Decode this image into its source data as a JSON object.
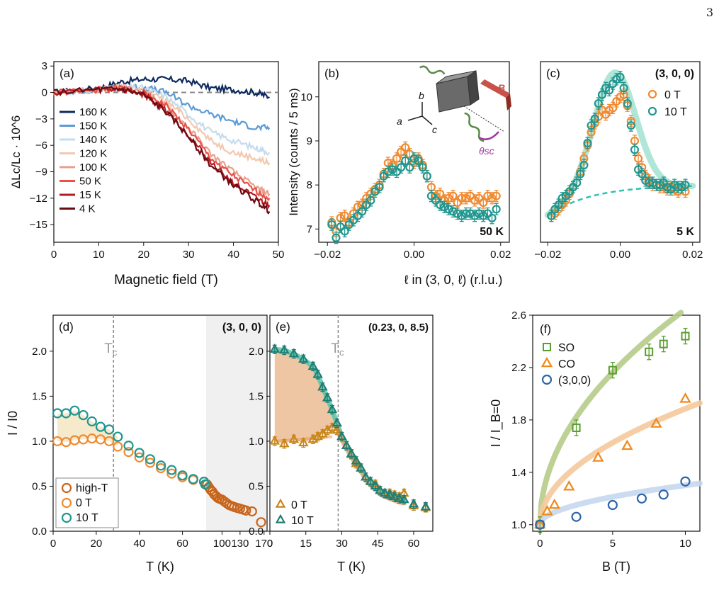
{
  "page_number": "3",
  "chart_data": [
    {
      "panel": "(a)",
      "type": "line",
      "xlabel": "Magnetic field (T)",
      "ylabel": "ΔLc/Lc · 10^6",
      "xlim": [
        0,
        50
      ],
      "ylim": [
        -17,
        3.5
      ],
      "xticks": [
        0,
        10,
        20,
        30,
        40,
        50
      ],
      "yticks": [
        3,
        0,
        -3,
        -6,
        -9,
        -12,
        -15
      ],
      "legend_position": "left",
      "series": [
        {
          "name": "160 K",
          "color": "#0d2a5e",
          "x": [
            0,
            10,
            15,
            20,
            25,
            30,
            35,
            40,
            45,
            48
          ],
          "y": [
            0,
            0.5,
            1.2,
            1.5,
            1.5,
            1.3,
            0.5,
            0.3,
            0,
            -0.5
          ]
        },
        {
          "name": "150 K",
          "color": "#5b9bd5",
          "x": [
            0,
            10,
            15,
            20,
            25,
            30,
            35,
            40,
            45,
            48
          ],
          "y": [
            0,
            0.3,
            0.6,
            0.6,
            0,
            -1.5,
            -2.5,
            -3.3,
            -4,
            -4
          ]
        },
        {
          "name": "140 K",
          "color": "#c6dcee",
          "x": [
            0,
            10,
            15,
            20,
            25,
            30,
            35,
            40,
            45,
            48
          ],
          "y": [
            0,
            0.3,
            0.6,
            0.5,
            -0.5,
            -2.5,
            -4.5,
            -5.5,
            -6.3,
            -6.8
          ]
        },
        {
          "name": "120 K",
          "color": "#f2c8b0",
          "x": [
            0,
            10,
            15,
            20,
            25,
            30,
            35,
            40,
            45,
            48
          ],
          "y": [
            0,
            0.3,
            0.6,
            0.3,
            -1,
            -3,
            -5.5,
            -6.8,
            -7.5,
            -8
          ]
        },
        {
          "name": "100 K",
          "color": "#e8a08a",
          "x": [
            0,
            10,
            15,
            20,
            25,
            30,
            35,
            40,
            45,
            48
          ],
          "y": [
            0,
            0.3,
            0.5,
            0,
            -1.5,
            -4,
            -7,
            -9,
            -10.8,
            -11.5
          ]
        },
        {
          "name": "50 K",
          "color": "#e8524a",
          "x": [
            0,
            10,
            15,
            20,
            25,
            30,
            35,
            40,
            45,
            48
          ],
          "y": [
            0,
            0.3,
            0.5,
            0,
            -1.5,
            -4.2,
            -7.5,
            -9.5,
            -11.2,
            -12
          ]
        },
        {
          "name": "15 K",
          "color": "#b01c22",
          "x": [
            0,
            10,
            15,
            20,
            25,
            30,
            35,
            40,
            45,
            48
          ],
          "y": [
            0,
            0.3,
            0.4,
            -0.2,
            -2,
            -4.8,
            -8,
            -10.3,
            -12,
            -12.8
          ]
        },
        {
          "name": "4 K",
          "color": "#6b0a10",
          "x": [
            0,
            10,
            15,
            20,
            25,
            30,
            35,
            40,
            45,
            48
          ],
          "y": [
            0,
            0.3,
            0.4,
            -0.3,
            -2.2,
            -5,
            -8.3,
            -10.5,
            -12.3,
            -13.5
          ]
        }
      ]
    },
    {
      "panel": "(b)",
      "type": "scatter",
      "xlabel": "",
      "ylabel": "Intensity (counts / 5 ms)",
      "annotation": "50 K",
      "xlim": [
        -0.022,
        0.022
      ],
      "ylim": [
        6.7,
        10.8
      ],
      "xticks": [
        -0.02,
        0.0,
        0.02
      ],
      "yticks": [
        7,
        8,
        9,
        10
      ],
      "inset_labels": {
        "b": "b",
        "a": "a",
        "c": "c",
        "B": "B",
        "theta": "θsc"
      },
      "series": [
        {
          "name": "0 T",
          "color": "#f08a30",
          "x": [
            -0.019,
            -0.018,
            -0.017,
            -0.016,
            -0.015,
            -0.014,
            -0.013,
            -0.012,
            -0.011,
            -0.01,
            -0.009,
            -0.008,
            -0.007,
            -0.006,
            -0.005,
            -0.004,
            -0.003,
            -0.002,
            -0.001,
            0.0,
            0.001,
            0.002,
            0.003,
            0.004,
            0.005,
            0.006,
            0.007,
            0.008,
            0.009,
            0.01,
            0.011,
            0.012,
            0.013,
            0.014,
            0.015,
            0.016,
            0.017,
            0.018,
            0.019
          ],
          "y": [
            7.15,
            6.95,
            7.25,
            7.3,
            7.15,
            7.35,
            7.5,
            7.55,
            7.7,
            7.8,
            7.9,
            8.0,
            8.25,
            8.5,
            8.45,
            8.6,
            8.75,
            8.85,
            8.7,
            8.5,
            8.6,
            8.45,
            8.2,
            7.95,
            7.75,
            7.8,
            7.65,
            7.7,
            7.75,
            7.6,
            7.7,
            7.7,
            7.75,
            7.65,
            7.7,
            7.6,
            7.75,
            7.7,
            7.75
          ]
        },
        {
          "name": "10 T",
          "color": "#21968f",
          "x": [
            -0.019,
            -0.018,
            -0.017,
            -0.016,
            -0.015,
            -0.014,
            -0.013,
            -0.012,
            -0.011,
            -0.01,
            -0.009,
            -0.008,
            -0.007,
            -0.006,
            -0.005,
            -0.004,
            -0.003,
            -0.002,
            -0.001,
            0.0,
            0.001,
            0.002,
            0.003,
            0.004,
            0.005,
            0.006,
            0.007,
            0.008,
            0.009,
            0.01,
            0.011,
            0.012,
            0.013,
            0.014,
            0.015,
            0.016,
            0.017,
            0.018,
            0.019
          ],
          "y": [
            7.1,
            6.8,
            7.05,
            6.95,
            7.1,
            7.2,
            7.3,
            7.4,
            7.55,
            7.65,
            7.85,
            7.95,
            8.2,
            8.3,
            8.35,
            8.3,
            8.4,
            8.55,
            8.4,
            8.6,
            8.55,
            8.4,
            8.2,
            7.75,
            7.65,
            7.55,
            7.5,
            7.45,
            7.4,
            7.35,
            7.3,
            7.35,
            7.35,
            7.3,
            7.35,
            7.3,
            7.35,
            7.25,
            7.45
          ]
        }
      ]
    },
    {
      "panel": "(c)",
      "type": "scatter",
      "xlabel": "ℓ in (3, 0, ℓ) (r.l.u.)",
      "ylabel": "",
      "annotation": "5 K",
      "title": "(3, 0, 0)",
      "xlim": [
        -0.022,
        0.022
      ],
      "ylim": [
        6.7,
        10.8
      ],
      "xticks": [
        -0.02,
        0.0,
        0.02
      ],
      "legend_position": "top-right",
      "series": [
        {
          "name": "0 T",
          "color": "#f08a30",
          "x": [
            -0.019,
            -0.018,
            -0.017,
            -0.016,
            -0.015,
            -0.014,
            -0.013,
            -0.012,
            -0.011,
            -0.01,
            -0.009,
            -0.008,
            -0.007,
            -0.006,
            -0.005,
            -0.004,
            -0.003,
            -0.002,
            -0.001,
            0.0,
            0.001,
            0.002,
            0.003,
            0.004,
            0.005,
            0.006,
            0.007,
            0.008,
            0.009,
            0.01,
            0.011,
            0.012,
            0.013,
            0.014,
            0.015,
            0.016,
            0.017,
            0.018
          ],
          "y": [
            7.3,
            7.35,
            7.45,
            7.55,
            7.65,
            7.8,
            7.95,
            8.05,
            8.3,
            8.6,
            8.9,
            9.2,
            9.4,
            9.55,
            9.7,
            9.6,
            9.7,
            9.75,
            9.9,
            10.0,
            10.05,
            9.8,
            9.45,
            9.0,
            8.6,
            8.4,
            8.2,
            8.1,
            8.0,
            8.0,
            7.95,
            7.95,
            7.9,
            7.95,
            7.9,
            7.85,
            7.95,
            7.85
          ]
        },
        {
          "name": "10 T",
          "color": "#21968f",
          "x": [
            -0.019,
            -0.018,
            -0.017,
            -0.016,
            -0.015,
            -0.014,
            -0.013,
            -0.012,
            -0.011,
            -0.01,
            -0.009,
            -0.008,
            -0.007,
            -0.006,
            -0.005,
            -0.004,
            -0.003,
            -0.002,
            -0.001,
            0.0,
            0.001,
            0.002,
            0.003,
            0.004,
            0.005,
            0.006,
            0.007,
            0.008,
            0.009,
            0.01,
            0.011,
            0.012,
            0.013,
            0.014,
            0.015,
            0.016,
            0.017,
            0.018
          ],
          "y": [
            7.3,
            7.45,
            7.55,
            7.7,
            7.75,
            7.85,
            7.95,
            8.05,
            8.25,
            8.45,
            8.95,
            9.35,
            9.5,
            9.85,
            10.05,
            10.2,
            10.15,
            10.3,
            10.4,
            10.45,
            10.2,
            9.85,
            9.35,
            8.8,
            8.35,
            8.25,
            8.1,
            8.05,
            8.05,
            8.0,
            8.0,
            8.05,
            7.95,
            7.9,
            8.0,
            7.95,
            7.95,
            8.0
          ]
        }
      ]
    },
    {
      "panel": "(d)",
      "type": "scatter",
      "xlabel": "T (K)",
      "ylabel": "I / I0",
      "title": "(3, 0, 0)",
      "xlim": [
        0,
        175
      ],
      "ylim": [
        0,
        2.4
      ],
      "xticks": [
        0,
        20,
        40,
        60,
        100,
        130,
        170
      ],
      "yticks": [
        0.0,
        0.5,
        1.0,
        1.5,
        2.0
      ],
      "tc_label": "Tc",
      "legend_position": "bottom-left",
      "series": [
        {
          "name": "high-T",
          "color": "#c8651b",
          "x": [
            75,
            78,
            81,
            84,
            87,
            90,
            93,
            96,
            100,
            104,
            108,
            112,
            116,
            120,
            125,
            130,
            135,
            140,
            150,
            165
          ],
          "y": [
            0.52,
            0.49,
            0.46,
            0.44,
            0.41,
            0.39,
            0.37,
            0.36,
            0.35,
            0.33,
            0.31,
            0.29,
            0.28,
            0.27,
            0.26,
            0.25,
            0.24,
            0.23,
            0.22,
            0.1
          ]
        },
        {
          "name": "0 T",
          "color": "#f08a30",
          "x": [
            2,
            6,
            10,
            14,
            18,
            22,
            26,
            30,
            35,
            40,
            45,
            50,
            55,
            60,
            65,
            70,
            72
          ],
          "y": [
            1.0,
            0.99,
            1.01,
            1.02,
            1.03,
            1.02,
            1.0,
            0.94,
            0.88,
            0.82,
            0.76,
            0.7,
            0.64,
            0.6,
            0.57,
            0.55,
            0.52
          ]
        },
        {
          "name": "10 T",
          "color": "#21968f",
          "x": [
            2,
            6,
            10,
            14,
            18,
            22,
            26,
            30,
            35,
            40,
            45,
            50,
            55,
            60,
            65,
            70,
            72
          ],
          "y": [
            1.31,
            1.31,
            1.34,
            1.29,
            1.22,
            1.16,
            1.13,
            1.05,
            0.95,
            0.87,
            0.8,
            0.73,
            0.68,
            0.62,
            0.58,
            0.55,
            0.52
          ]
        }
      ]
    },
    {
      "panel": "(e)",
      "type": "scatter",
      "xlabel": "T (K)",
      "ylabel": "",
      "title": "(0.23, 0, 8.5)",
      "xlim": [
        0,
        68
      ],
      "ylim": [
        0,
        2.4
      ],
      "xticks": [
        0,
        15,
        30,
        45,
        60
      ],
      "yticks": [
        0.0,
        0.5,
        1.0,
        1.5,
        2.0
      ],
      "tc_label": "Tc",
      "legend_position": "bottom-left",
      "series": [
        {
          "name": "0 T",
          "color": "#c8861b",
          "x": [
            2,
            6,
            10,
            14,
            18,
            20,
            22,
            24,
            26,
            28,
            30,
            32,
            34,
            36,
            38,
            40,
            42,
            44,
            46,
            48,
            50,
            52,
            54,
            56,
            60,
            65
          ],
          "y": [
            1.0,
            0.97,
            1.02,
            0.98,
            1.02,
            1.05,
            1.08,
            1.12,
            1.15,
            1.12,
            1.05,
            0.95,
            0.85,
            0.75,
            0.7,
            0.6,
            0.55,
            0.52,
            0.45,
            0.42,
            0.42,
            0.4,
            0.38,
            0.42,
            0.28,
            0.26
          ]
        },
        {
          "name": "10 T",
          "color": "#1f7f76",
          "x": [
            2,
            6,
            10,
            14,
            18,
            20,
            22,
            24,
            26,
            28,
            30,
            32,
            34,
            36,
            38,
            40,
            42,
            44,
            46,
            48,
            50,
            52,
            54,
            56,
            60,
            65
          ],
          "y": [
            2.02,
            2.01,
            1.97,
            1.91,
            1.83,
            1.74,
            1.6,
            1.48,
            1.35,
            1.2,
            1.05,
            0.95,
            0.86,
            0.78,
            0.7,
            0.6,
            0.55,
            0.5,
            0.45,
            0.42,
            0.4,
            0.38,
            0.36,
            0.35,
            0.3,
            0.27
          ]
        }
      ]
    },
    {
      "panel": "(f)",
      "type": "scatter",
      "xlabel": "B (T)",
      "ylabel": "I / I_B=0",
      "xlim": [
        -0.5,
        11
      ],
      "ylim": [
        0.95,
        2.6
      ],
      "xticks": [
        0,
        5,
        10
      ],
      "yticks": [
        1.0,
        1.4,
        1.8,
        2.2,
        2.6
      ],
      "legend_position": "top-left",
      "series": [
        {
          "name": "SO",
          "color": "#5a9e2f",
          "marker": "square",
          "x": [
            0,
            2.5,
            5,
            7.5,
            8.5,
            10
          ],
          "y": [
            1.0,
            1.74,
            2.18,
            2.32,
            2.38,
            2.44
          ]
        },
        {
          "name": "CO",
          "color": "#f08a1c",
          "marker": "triangle",
          "x": [
            0,
            0.5,
            1,
            2,
            4,
            6,
            8,
            10
          ],
          "y": [
            1.0,
            1.1,
            1.15,
            1.29,
            1.51,
            1.6,
            1.77,
            1.96
          ]
        },
        {
          "name": "(3,0,0)",
          "color": "#2f65a8",
          "marker": "circle",
          "x": [
            0,
            2.5,
            5,
            7,
            8.5,
            10
          ],
          "y": [
            1.0,
            1.06,
            1.15,
            1.2,
            1.23,
            1.33
          ]
        }
      ]
    }
  ]
}
